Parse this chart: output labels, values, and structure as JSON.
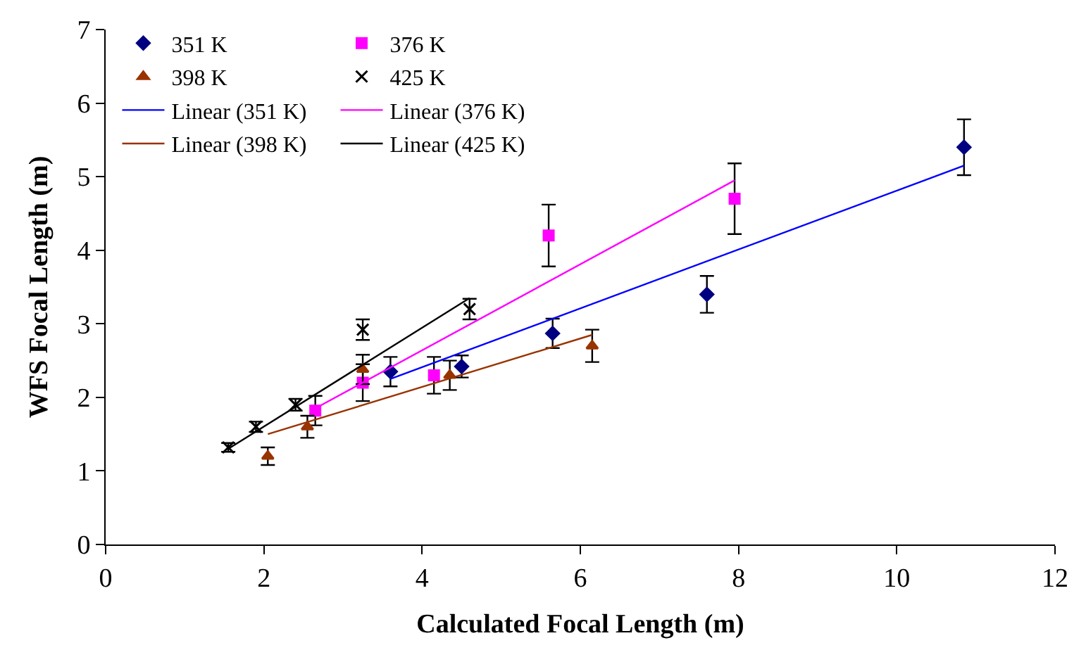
{
  "chart_data": {
    "type": "scatter",
    "xlabel": "Calculated Focal Length (m)",
    "ylabel": "WFS Focal Length (m)",
    "xlim": [
      0,
      12
    ],
    "xticks": [
      0,
      2,
      4,
      6,
      8,
      10,
      12
    ],
    "ylim": [
      0,
      7
    ],
    "yticks": [
      0,
      1,
      2,
      3,
      4,
      5,
      6,
      7
    ],
    "legend": "top left",
    "series": [
      {
        "name": "351 K",
        "color": "#000080",
        "marker": "diamond",
        "x": [
          3.6,
          4.5,
          5.65,
          7.6,
          10.85
        ],
        "values": [
          2.35,
          2.42,
          2.87,
          3.4,
          5.4
        ],
        "errors": [
          0.2,
          0.15,
          0.2,
          0.25,
          0.38
        ]
      },
      {
        "name": "376 K",
        "color": "#ff00ff",
        "marker": "square",
        "x": [
          2.65,
          3.25,
          4.15,
          5.6,
          7.95
        ],
        "values": [
          1.82,
          2.2,
          2.3,
          4.2,
          4.7
        ],
        "errors": [
          0.2,
          0.25,
          0.25,
          0.42,
          0.48
        ]
      },
      {
        "name": "398 K",
        "color": "#993300",
        "marker": "triangle",
        "x": [
          2.05,
          2.55,
          3.25,
          4.35,
          6.15
        ],
        "values": [
          1.2,
          1.6,
          2.38,
          2.3,
          2.7
        ],
        "errors": [
          0.12,
          0.15,
          0.2,
          0.2,
          0.22
        ]
      },
      {
        "name": "425 K",
        "color": "#000000",
        "marker": "cross",
        "x": [
          1.55,
          1.9,
          2.4,
          3.25,
          4.6
        ],
        "values": [
          1.32,
          1.6,
          1.9,
          2.92,
          3.2
        ],
        "errors": [
          0.06,
          0.07,
          0.08,
          0.14,
          0.14
        ]
      },
      {
        "name": "Linear (351 K)",
        "type": "line",
        "color": "#0000ff",
        "x": [
          3.6,
          10.85
        ],
        "values": [
          2.25,
          5.15
        ]
      },
      {
        "name": "Linear (376 K)",
        "type": "line",
        "color": "#ff00ff",
        "x": [
          2.65,
          7.95
        ],
        "values": [
          1.85,
          4.95
        ]
      },
      {
        "name": "Linear (398 K)",
        "type": "line",
        "color": "#993300",
        "x": [
          2.05,
          6.15
        ],
        "values": [
          1.5,
          2.85
        ]
      },
      {
        "name": "Linear (425 K)",
        "type": "line",
        "color": "#000000",
        "x": [
          1.55,
          4.6
        ],
        "values": [
          1.3,
          3.35
        ]
      }
    ]
  }
}
